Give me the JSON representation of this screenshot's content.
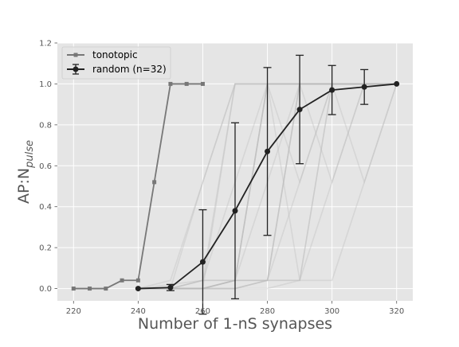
{
  "chart_data": {
    "type": "line",
    "style": "ggplot",
    "xlabel": "Number of 1-nS synapses",
    "ylabel": "AP:N",
    "ylabel_subscript": "pulse",
    "xlim": [
      215,
      325
    ],
    "ylim": [
      -0.06,
      1.2
    ],
    "xticks": [
      220,
      240,
      260,
      280,
      300,
      320
    ],
    "xtick_labels": [
      "220",
      "240",
      "260",
      "280",
      "300",
      "320"
    ],
    "yticks": [
      0.0,
      0.2,
      0.4,
      0.6,
      0.8,
      1.0,
      1.2
    ],
    "ytick_labels": [
      "0.0",
      "0.2",
      "0.4",
      "0.6",
      "0.8",
      "1.0",
      "1.2"
    ],
    "grid": true,
    "legend_position": "upper-left",
    "series": [
      {
        "name": "tonotopic",
        "color": "#777777",
        "marker": "square",
        "x": [
          220,
          225,
          230,
          235,
          240,
          245,
          250,
          255,
          260
        ],
        "y": [
          0.0,
          0.0,
          0.0,
          0.04,
          0.04,
          0.52,
          1.0,
          1.0,
          1.0
        ]
      },
      {
        "name": "random (n=32)",
        "color": "#222222",
        "marker": "circle",
        "x": [
          240,
          250,
          260,
          270,
          280,
          290,
          300,
          310,
          320
        ],
        "y": [
          0.0,
          0.005,
          0.13,
          0.38,
          0.67,
          0.875,
          0.97,
          0.985,
          1.0
        ],
        "yerr": [
          0.0,
          0.015,
          0.255,
          0.43,
          0.41,
          0.265,
          0.12,
          0.085,
          0.0
        ]
      }
    ],
    "background_traces": {
      "color": "#bbbbbb",
      "x": [
        240,
        250,
        260,
        270,
        280,
        290,
        300,
        310,
        320
      ],
      "traces": [
        [
          0,
          0,
          0,
          1,
          1,
          1,
          1,
          1,
          1
        ],
        [
          0,
          0,
          0.04,
          1,
          1,
          1,
          1,
          1,
          1
        ],
        [
          0,
          0,
          0.52,
          1,
          1,
          1,
          1,
          1,
          1
        ],
        [
          0,
          0.02,
          0.04,
          0.04,
          1,
          1,
          1,
          1,
          1
        ],
        [
          0,
          0,
          0,
          0.04,
          0.04,
          1,
          1,
          1,
          1
        ],
        [
          0,
          0,
          0,
          0.04,
          0.52,
          1,
          1,
          1,
          1
        ],
        [
          0,
          0,
          0.04,
          0.04,
          1,
          0.52,
          1,
          1,
          1
        ],
        [
          0,
          0,
          0,
          0,
          0.04,
          1,
          0.52,
          1,
          1
        ],
        [
          0,
          0,
          0,
          0.04,
          1,
          0.04,
          1,
          1,
          1
        ],
        [
          0,
          0,
          0,
          0.04,
          0.04,
          0.52,
          1,
          0.52,
          1
        ],
        [
          0,
          0,
          0,
          0,
          0.04,
          0.04,
          1,
          1,
          1
        ],
        [
          0,
          0.04,
          0.52,
          1,
          1,
          1,
          1,
          1,
          1
        ],
        [
          0,
          0,
          0,
          0.04,
          0.04,
          0.04,
          0.52,
          1,
          1
        ],
        [
          0,
          0,
          0,
          0,
          0.04,
          1,
          1,
          1,
          1
        ],
        [
          0,
          0,
          0.04,
          0.52,
          1,
          1,
          1,
          1,
          1
        ],
        [
          0,
          0,
          0,
          0,
          0,
          0.04,
          0.04,
          0.52,
          1
        ],
        [
          0,
          0,
          0,
          0.04,
          1,
          1,
          1,
          1,
          1
        ]
      ]
    }
  }
}
